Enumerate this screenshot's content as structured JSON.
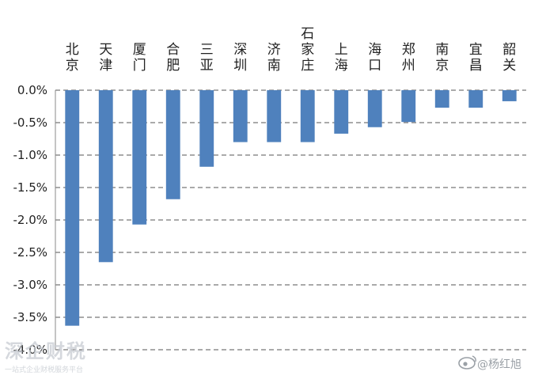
{
  "chart_data": {
    "type": "bar",
    "title": "",
    "xlabel": "",
    "ylabel": "",
    "categories": [
      "北京",
      "天津",
      "厦门",
      "合肥",
      "三亚",
      "深圳",
      "济南",
      "石家庄",
      "上海",
      "海口",
      "郑州",
      "南京",
      "宜昌",
      "韶关"
    ],
    "values": [
      -3.63,
      -2.65,
      -2.07,
      -1.68,
      -1.18,
      -0.8,
      -0.8,
      -0.8,
      -0.67,
      -0.57,
      -0.49,
      -0.27,
      -0.27,
      -0.17
    ],
    "ylim": [
      -4.0,
      0.0
    ],
    "yticks": [
      0.0,
      -0.5,
      -1.0,
      -1.5,
      -2.0,
      -2.5,
      -3.0,
      -3.5,
      -4.0
    ],
    "ytick_labels": [
      "0.0%",
      "-0.5%",
      "-1.0%",
      "-1.5%",
      "-2.0%",
      "-2.5%",
      "-3.0%",
      "-3.5%",
      "-4.0%"
    ],
    "grid": "dashed horizontal",
    "category_label_position": "top",
    "bar_color": "#4f81bd"
  },
  "watermark": {
    "text": "深企财税",
    "subtext": "一站式企业财税服务平台"
  },
  "credit": {
    "text": "@杨红旭"
  }
}
